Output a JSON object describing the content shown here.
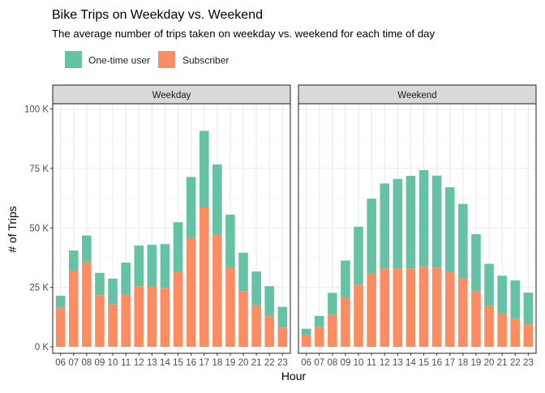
{
  "chart_data": {
    "type": "bar",
    "stacked": true,
    "title": "Bike Trips on Weekday vs. Weekend",
    "subtitle": "The average number of trips taken on weekday vs. weekend for each time of day",
    "xlabel": "Hour",
    "ylabel": "# of Trips",
    "ylim": [
      0,
      100000
    ],
    "yticks": [
      0,
      25000,
      50000,
      75000,
      100000
    ],
    "ytick_labels": [
      "0 K",
      "25 K",
      "50 K",
      "75 K",
      "100 K"
    ],
    "grid": true,
    "legend_position": "top-left",
    "categories": [
      "06",
      "07",
      "08",
      "09",
      "10",
      "11",
      "12",
      "13",
      "14",
      "15",
      "16",
      "17",
      "18",
      "19",
      "20",
      "21",
      "22",
      "23"
    ],
    "series_styles": [
      {
        "name": "One-time user",
        "color": "#66C2A5"
      },
      {
        "name": "Subscriber",
        "color": "#FC8D62"
      }
    ],
    "facets": [
      {
        "label": "Weekday",
        "series": [
          {
            "name": "Subscriber",
            "values": [
              16500,
              32000,
              35800,
              21700,
              17800,
              22000,
              25500,
              25200,
              24800,
              31500,
              45700,
              58600,
              47200,
              33200,
              23400,
              17500,
              12900,
              8100
            ]
          },
          {
            "name": "One-time user",
            "values": [
              5000,
              8500,
              11000,
              9400,
              10900,
              13400,
              17100,
              17700,
              18400,
              20900,
              25700,
              32200,
              29500,
              22400,
              16200,
              14200,
              12600,
              8700
            ]
          }
        ]
      },
      {
        "label": "Weekend",
        "series": [
          {
            "name": "Subscriber",
            "values": [
              4800,
              8300,
              13500,
              20500,
              26300,
              31000,
              32800,
              32800,
              33000,
              33800,
              33300,
              31500,
              29000,
              23300,
              17100,
              13800,
              12000,
              9500
            ]
          },
          {
            "name": "One-time user",
            "values": [
              2800,
              4700,
              9200,
              15800,
              24200,
              31300,
              35900,
              37800,
              38900,
              40500,
              38700,
              35600,
              31100,
              24100,
              17800,
              16100,
              15900,
              13300
            ]
          }
        ]
      }
    ]
  },
  "legend": {
    "items": [
      {
        "label": "One-time user",
        "color": "#66C2A5"
      },
      {
        "label": "Subscriber",
        "color": "#FC8D62"
      }
    ]
  },
  "colors": {
    "panel_border": "#333333",
    "strip_fill": "#d9d9d9",
    "grid_major": "#ebebeb",
    "grid_minor": "#f5f5f5"
  }
}
